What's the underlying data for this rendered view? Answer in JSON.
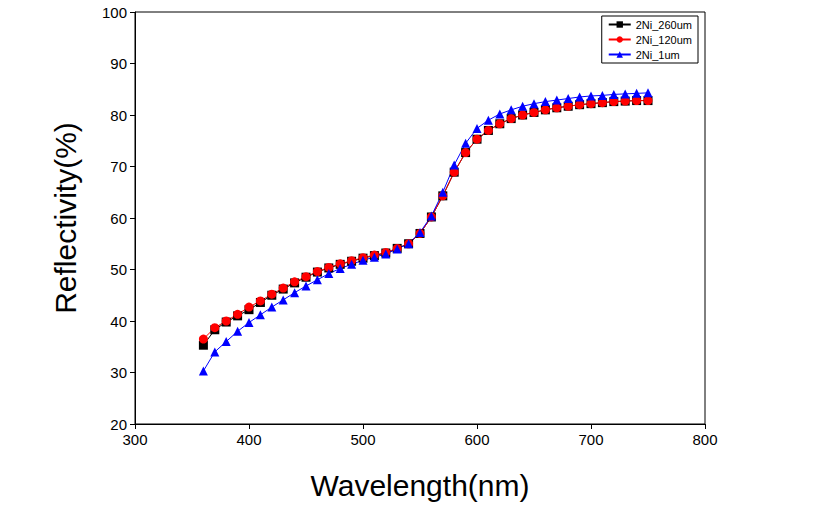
{
  "chart_data": {
    "type": "line",
    "xlabel": "Wavelength(nm)",
    "ylabel": "Reflectivity(%)",
    "x": [
      360,
      370,
      380,
      390,
      400,
      410,
      420,
      430,
      440,
      450,
      460,
      470,
      480,
      490,
      500,
      510,
      520,
      530,
      540,
      550,
      560,
      570,
      580,
      590,
      600,
      610,
      620,
      630,
      640,
      650,
      660,
      670,
      680,
      690,
      700,
      710,
      720,
      730,
      740,
      750
    ],
    "series": [
      {
        "name": "2Ni_260um",
        "color": "#000000",
        "marker": "square",
        "values": [
          35.3,
          38.3,
          39.8,
          41.0,
          42.2,
          43.6,
          45.0,
          46.2,
          47.4,
          48.5,
          49.5,
          50.3,
          51.0,
          51.6,
          52.2,
          52.7,
          53.2,
          54.1,
          55.0,
          57.0,
          60.2,
          64.3,
          68.9,
          72.7,
          75.3,
          77.0,
          78.3,
          79.3,
          80.0,
          80.5,
          81.0,
          81.4,
          81.7,
          82.0,
          82.2,
          82.4,
          82.6,
          82.7,
          82.8,
          82.8
        ]
      },
      {
        "name": "2Ni_120um",
        "color": "#ff0000",
        "marker": "circle",
        "values": [
          36.5,
          38.7,
          40.0,
          41.3,
          42.7,
          43.9,
          45.2,
          46.4,
          47.6,
          48.6,
          49.6,
          50.4,
          51.1,
          51.7,
          52.3,
          52.8,
          53.3,
          54.1,
          55.0,
          57.0,
          60.2,
          64.3,
          68.9,
          72.7,
          75.3,
          77.0,
          78.3,
          79.3,
          80.0,
          80.5,
          81.0,
          81.4,
          81.7,
          82.0,
          82.2,
          82.4,
          82.6,
          82.7,
          82.8,
          82.8
        ]
      },
      {
        "name": "2Ni_1um",
        "color": "#0000ff",
        "marker": "triangle",
        "values": [
          30.3,
          34.0,
          36.0,
          38.0,
          39.7,
          41.2,
          42.7,
          44.1,
          45.5,
          46.8,
          48.0,
          49.2,
          50.2,
          51.0,
          51.8,
          52.4,
          53.0,
          54.0,
          55.0,
          57.2,
          60.4,
          65.0,
          70.3,
          74.5,
          77.4,
          79.0,
          80.2,
          81.0,
          81.7,
          82.2,
          82.6,
          82.9,
          83.2,
          83.5,
          83.7,
          83.8,
          84.0,
          84.1,
          84.2,
          84.3
        ]
      }
    ],
    "xlim": [
      300,
      800
    ],
    "xticks": [
      300,
      400,
      500,
      600,
      700,
      800
    ],
    "ylim": [
      20,
      100
    ],
    "yticks": [
      20,
      30,
      40,
      50,
      60,
      70,
      80,
      90,
      100
    ],
    "legend": "upper right",
    "grid": false
  }
}
